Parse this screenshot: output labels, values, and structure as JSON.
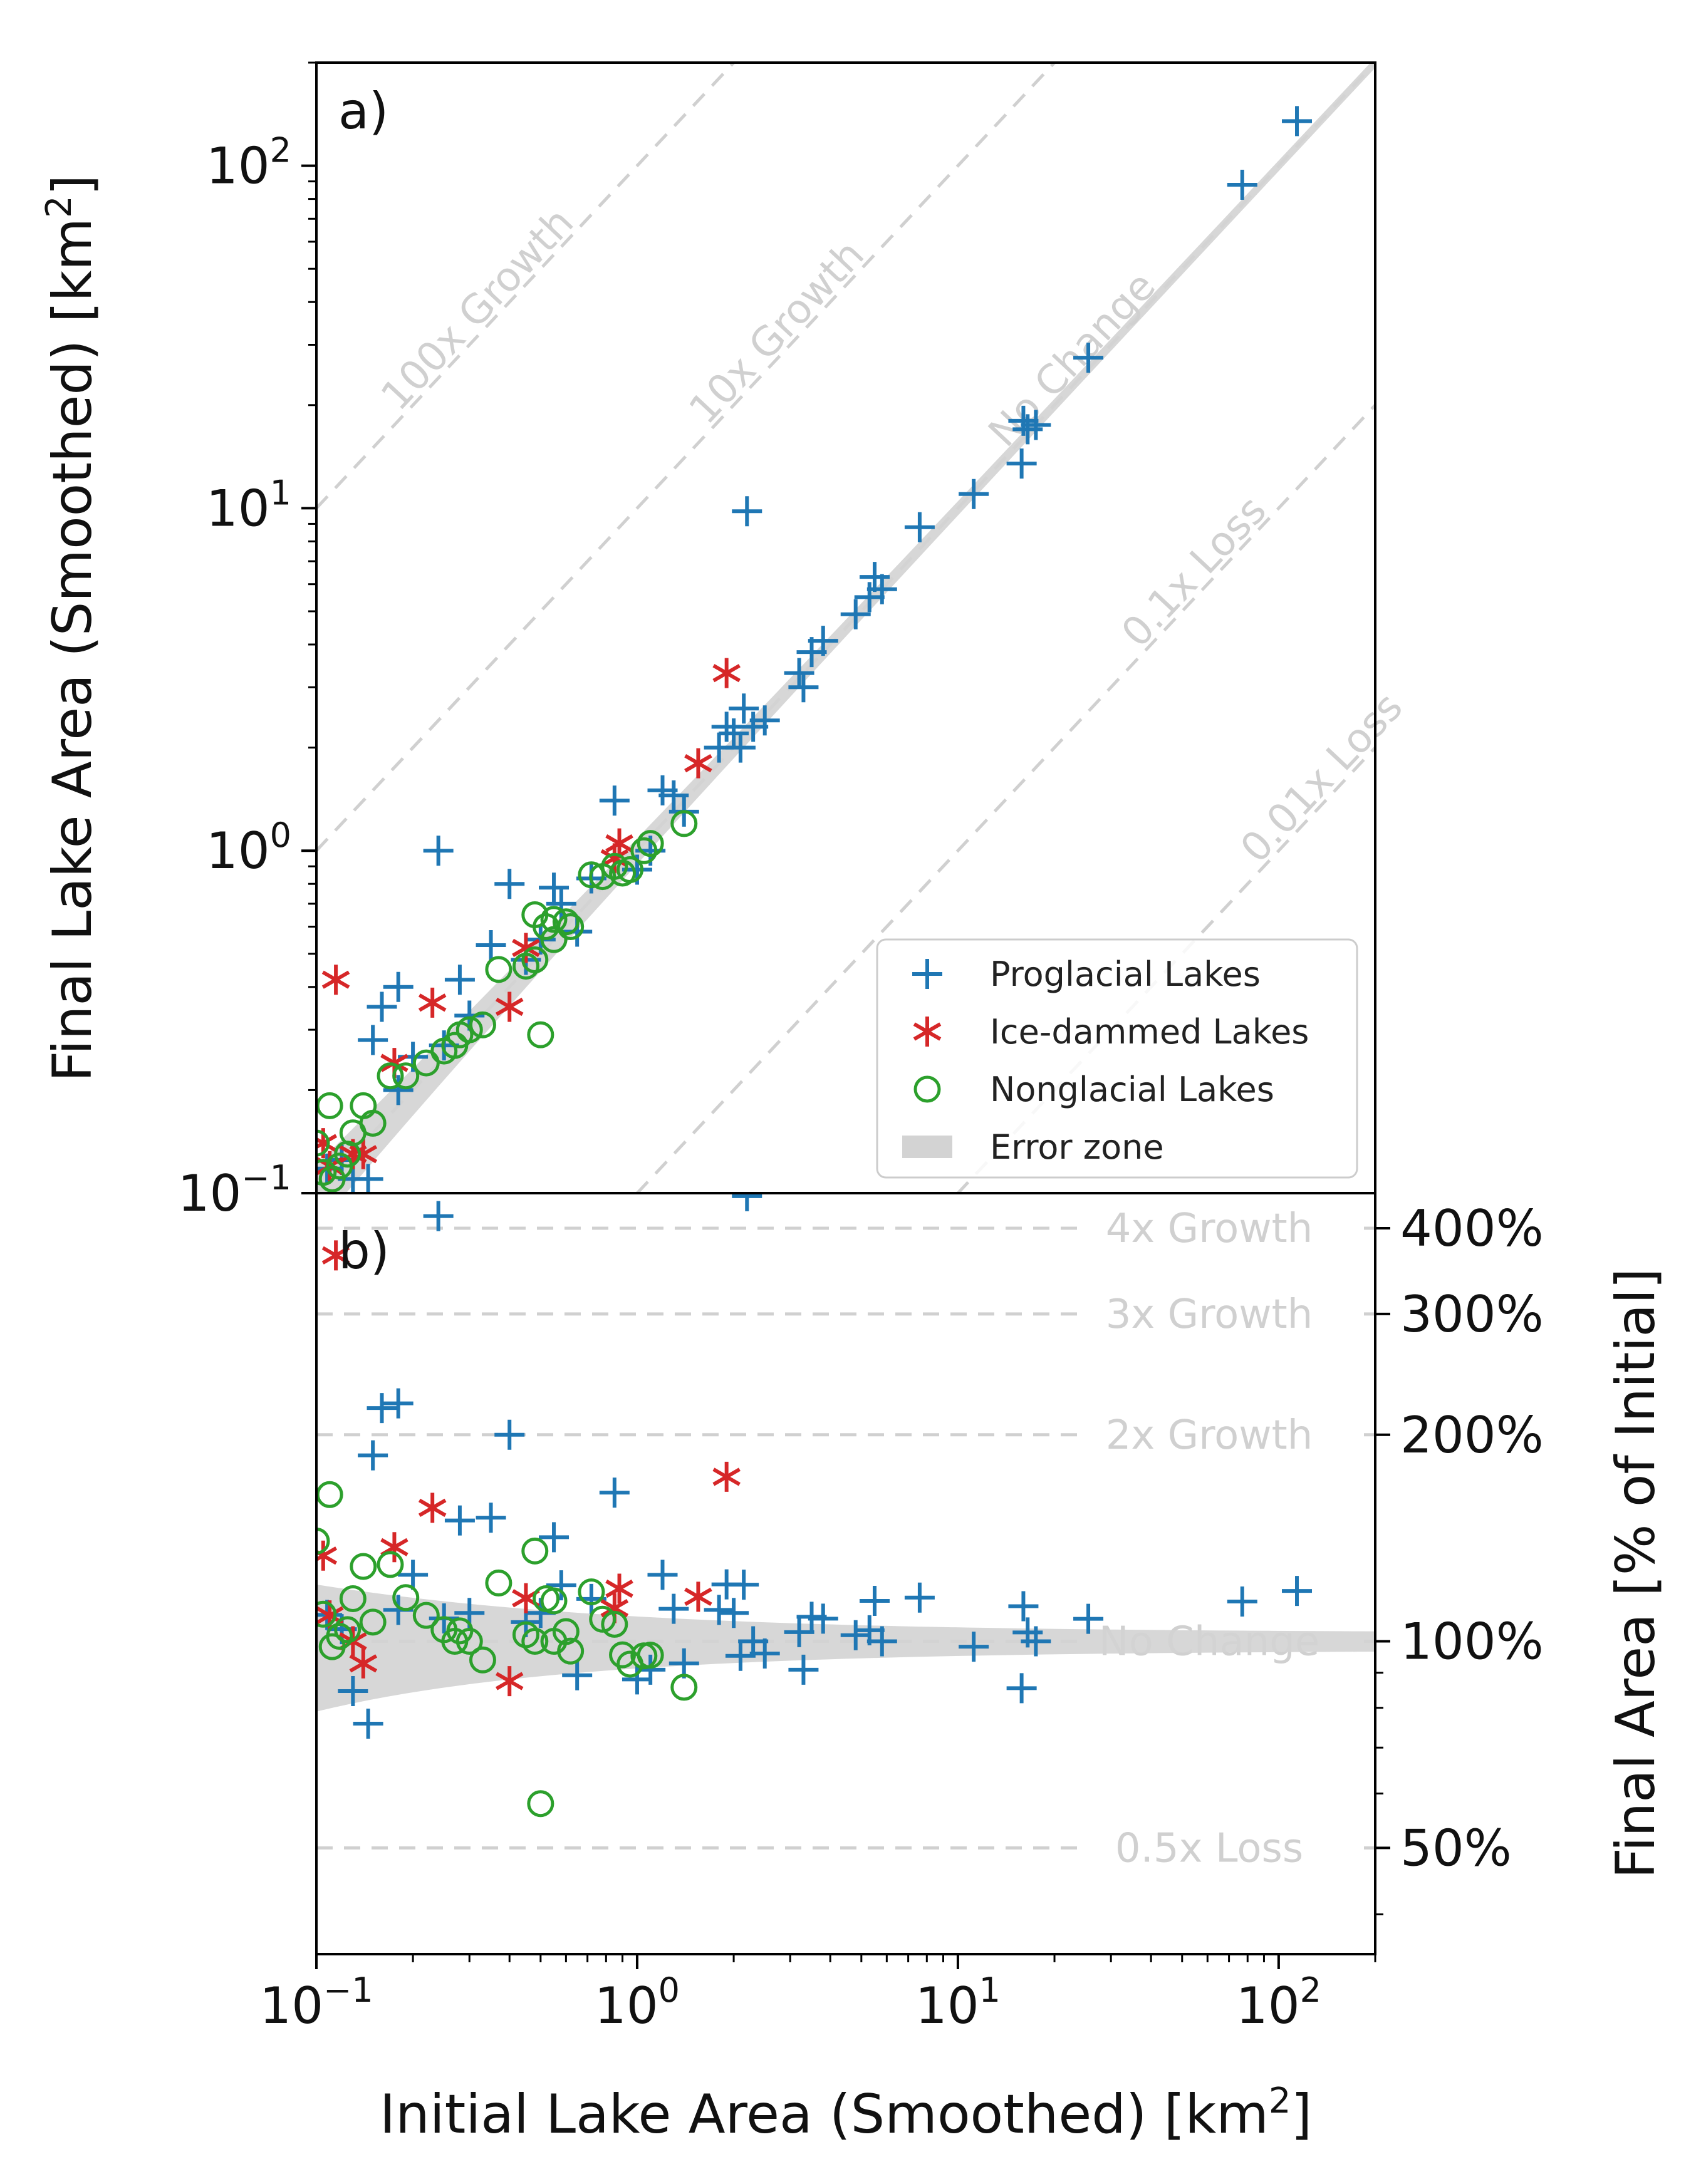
{
  "chart_data": {
    "type": "scatter",
    "colors": {
      "proglacial": "#1f77b4",
      "ice_dammed": "#d62728",
      "nonglacial": "#2ca02c",
      "error_zone": "#d3d3d3",
      "reference_line": "#d0d0d0"
    },
    "x_axis": {
      "label_main": "Initial Lake Area (Smoothed) [km",
      "label_sup": "2",
      "label_end": "]",
      "scale": "log",
      "range": [
        0.1,
        200
      ],
      "ticks": [
        {
          "value": 0.1,
          "base": "10",
          "exp": "−1"
        },
        {
          "value": 1,
          "base": "10",
          "exp": "0"
        },
        {
          "value": 10,
          "base": "10",
          "exp": "1"
        },
        {
          "value": 100,
          "base": "10",
          "exp": "2"
        }
      ]
    },
    "panel_a": {
      "label": "a)",
      "y_label_main": "Final Lake Area (Smoothed) [km",
      "y_label_sup": "2",
      "y_label_end": "]",
      "y_scale": "log",
      "y_range": [
        0.1,
        200
      ],
      "y_ticks": [
        {
          "value": 0.1,
          "base": "10",
          "exp": "−1"
        },
        {
          "value": 1,
          "base": "10",
          "exp": "0"
        },
        {
          "value": 10,
          "base": "10",
          "exp": "1"
        },
        {
          "value": 100,
          "base": "10",
          "exp": "2"
        }
      ],
      "reference_lines": [
        {
          "factor": 100,
          "label": "100x Growth",
          "label_x": 0.35
        },
        {
          "factor": 10,
          "label": "10x Growth",
          "label_x": 3.0
        },
        {
          "factor": 1,
          "label": "No Change",
          "label_x": 25
        },
        {
          "factor": 0.1,
          "label": "0.1x Loss",
          "label_x": 60
        },
        {
          "factor": 0.01,
          "label": "0.01x Loss",
          "label_x": 150
        }
      ],
      "legend": {
        "position": "lower-right",
        "entries": [
          {
            "series": "proglacial",
            "label": "Proglacial Lakes"
          },
          {
            "series": "ice_dammed",
            "label": "Ice-dammed Lakes"
          },
          {
            "series": "nonglacial",
            "label": "Nonglacial Lakes"
          },
          {
            "series": "error_zone",
            "label": "Error zone"
          }
        ]
      }
    },
    "panel_b": {
      "label": "b)",
      "y_label": "Final Area [% of Initial]",
      "y_scale": "log",
      "y_range": [
        35,
        450
      ],
      "y_ticks": [
        {
          "value": 50,
          "label": "50%"
        },
        {
          "value": 100,
          "label": "100%"
        },
        {
          "value": 200,
          "label": "200%"
        },
        {
          "value": 300,
          "label": "300%"
        },
        {
          "value": 400,
          "label": "400%"
        }
      ],
      "reference_lines": [
        {
          "ratio": 4,
          "label": "4x Growth"
        },
        {
          "ratio": 3,
          "label": "3x Growth"
        },
        {
          "ratio": 2,
          "label": "2x Growth"
        },
        {
          "ratio": 1,
          "label": "No Change"
        },
        {
          "ratio": 0.5,
          "label": "0.5x Loss"
        }
      ]
    },
    "series": [
      {
        "name": "proglacial",
        "label": "Proglacial Lakes",
        "points": [
          [
            0.108,
            0.118
          ],
          [
            0.12,
            0.125
          ],
          [
            0.13,
            0.11
          ],
          [
            0.145,
            0.11
          ],
          [
            0.15,
            0.28
          ],
          [
            0.16,
            0.35
          ],
          [
            0.18,
            0.4
          ],
          [
            0.18,
            0.2
          ],
          [
            0.2,
            0.25
          ],
          [
            0.24,
            1.0
          ],
          [
            0.25,
            0.27
          ],
          [
            0.28,
            0.42
          ],
          [
            0.3,
            0.33
          ],
          [
            0.35,
            0.53
          ],
          [
            0.4,
            0.8
          ],
          [
            0.45,
            0.48
          ],
          [
            0.5,
            0.55
          ],
          [
            0.55,
            0.78
          ],
          [
            0.58,
            0.7
          ],
          [
            0.65,
            0.58
          ],
          [
            0.72,
            0.83
          ],
          [
            0.85,
            1.4
          ],
          [
            1.0,
            0.88
          ],
          [
            1.1,
            1.0
          ],
          [
            1.2,
            1.5
          ],
          [
            1.3,
            1.45
          ],
          [
            1.4,
            1.3
          ],
          [
            1.8,
            2.0
          ],
          [
            1.9,
            2.3
          ],
          [
            2.0,
            2.2
          ],
          [
            2.1,
            2.0
          ],
          [
            2.15,
            2.6
          ],
          [
            2.2,
            9.8
          ],
          [
            2.3,
            2.3
          ],
          [
            2.5,
            2.4
          ],
          [
            3.2,
            3.3
          ],
          [
            3.3,
            3.0
          ],
          [
            3.5,
            3.8
          ],
          [
            3.8,
            4.1
          ],
          [
            4.8,
            4.9
          ],
          [
            5.3,
            5.5
          ],
          [
            5.5,
            6.3
          ],
          [
            5.8,
            5.8
          ],
          [
            7.6,
            8.8
          ],
          [
            11.2,
            11.0
          ],
          [
            15.8,
            13.5
          ],
          [
            16.0,
            18.0
          ],
          [
            16.5,
            17.0
          ],
          [
            17.5,
            17.5
          ],
          [
            25.5,
            27.5
          ],
          [
            77.0,
            88.0
          ],
          [
            114.0,
            135.0
          ]
        ]
      },
      {
        "name": "ice_dammed",
        "label": "Ice-dammed Lakes",
        "points": [
          [
            0.105,
            0.14
          ],
          [
            0.11,
            0.12
          ],
          [
            0.115,
            0.42
          ],
          [
            0.13,
            0.13
          ],
          [
            0.14,
            0.13
          ],
          [
            0.175,
            0.24
          ],
          [
            0.23,
            0.36
          ],
          [
            0.4,
            0.35
          ],
          [
            0.45,
            0.52
          ],
          [
            0.85,
            0.95
          ],
          [
            0.88,
            1.05
          ],
          [
            1.55,
            1.8
          ],
          [
            1.9,
            3.3
          ]
        ]
      },
      {
        "name": "nonglacial",
        "label": "Nonglacial Lakes",
        "points": [
          [
            0.1,
            0.14
          ],
          [
            0.105,
            0.115
          ],
          [
            0.11,
            0.18
          ],
          [
            0.112,
            0.11
          ],
          [
            0.118,
            0.12
          ],
          [
            0.125,
            0.13
          ],
          [
            0.13,
            0.15
          ],
          [
            0.14,
            0.18
          ],
          [
            0.15,
            0.16
          ],
          [
            0.17,
            0.22
          ],
          [
            0.19,
            0.22
          ],
          [
            0.22,
            0.24
          ],
          [
            0.25,
            0.26
          ],
          [
            0.27,
            0.27
          ],
          [
            0.28,
            0.29
          ],
          [
            0.3,
            0.3
          ],
          [
            0.33,
            0.31
          ],
          [
            0.37,
            0.45
          ],
          [
            0.45,
            0.46
          ],
          [
            0.48,
            0.48
          ],
          [
            0.5,
            0.29
          ],
          [
            0.52,
            0.6
          ],
          [
            0.55,
            0.63
          ],
          [
            0.6,
            0.62
          ],
          [
            0.62,
            0.6
          ],
          [
            0.72,
            0.85
          ],
          [
            0.78,
            0.84
          ],
          [
            0.85,
            0.9
          ],
          [
            0.9,
            0.86
          ],
          [
            0.95,
            0.88
          ],
          [
            1.05,
            1.0
          ],
          [
            1.1,
            1.05
          ],
          [
            1.4,
            1.2
          ],
          [
            0.48,
            0.65
          ],
          [
            0.55,
            0.55
          ]
        ]
      }
    ]
  }
}
